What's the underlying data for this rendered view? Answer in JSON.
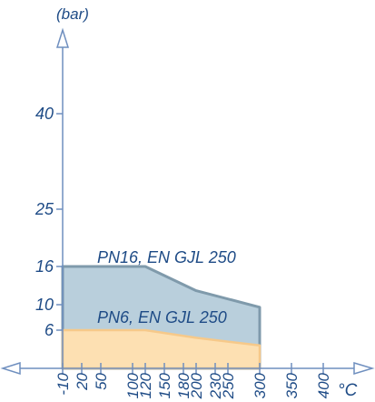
{
  "chart_data": {
    "type": "area",
    "ylabel": "(bar)",
    "xlabel": "°C",
    "x_ticks": [
      -10,
      20,
      50,
      100,
      120,
      150,
      180,
      200,
      230,
      250,
      300,
      350,
      400
    ],
    "y_ticks": [
      6,
      10,
      16,
      25,
      40
    ],
    "xlim": [
      -20,
      420
    ],
    "ylim": [
      0,
      52
    ],
    "series": [
      {
        "name": "PN16, EN GJL 250",
        "color": "#b9cfdc",
        "edge_color": "#7f9aab",
        "x": [
          -10,
          -10,
          120,
          200,
          300,
          300
        ],
        "y": [
          0,
          16,
          16,
          12.2,
          9.6,
          0
        ]
      },
      {
        "name": "PN6, EN GJL 250",
        "color": "#fde0b2",
        "edge_color": "#f6c98a",
        "x": [
          -10,
          -10,
          120,
          200,
          300,
          300
        ],
        "y": [
          0,
          6,
          6,
          4.8,
          3.6,
          0
        ]
      }
    ]
  }
}
